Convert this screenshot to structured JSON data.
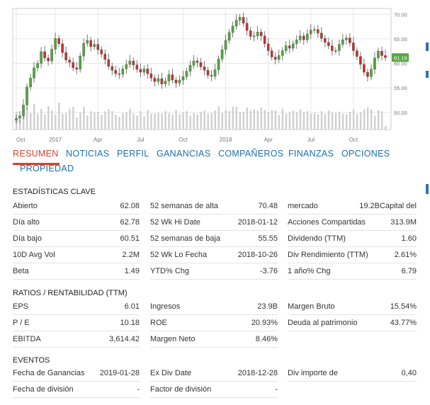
{
  "chart_data": {
    "type": "candlestick",
    "x_ticks": [
      "Oct",
      "2017",
      "Apr",
      "Jul",
      "Oct",
      "2018",
      "Apr",
      "Jul",
      "Oct"
    ],
    "y_ticks": [
      "70.00",
      "65.00",
      "60.00",
      "55.00",
      "50.00"
    ],
    "ylim": [
      46.5,
      71.2
    ],
    "last_price_label": "61.19",
    "grid": true,
    "price_series": [
      48.8,
      49.3,
      51.5,
      55.2,
      57.0,
      59.1,
      60.0,
      62.4,
      61.1,
      60.5,
      62.9,
      65.1,
      64.0,
      62.2,
      60.7,
      60.2,
      59.1,
      58.8,
      61.5,
      64.1,
      64.7,
      63.4,
      63.9,
      62.8,
      61.9,
      60.8,
      59.4,
      58.6,
      57.9,
      57.8,
      58.9,
      59.8,
      60.5,
      59.7,
      58.8,
      58.2,
      58.9,
      57.9,
      57.0,
      56.3,
      56.9,
      55.8,
      56.4,
      57.7,
      56.6,
      56.0,
      56.6,
      57.3,
      58.4,
      59.6,
      60.5,
      60.2,
      59.3,
      58.6,
      57.6,
      57.4,
      58.7,
      60.9,
      62.8,
      64.7,
      66.3,
      67.6,
      68.8,
      69.4,
      68.2,
      66.7,
      65.5,
      65.6,
      66.4,
      65.6,
      64.0,
      62.6,
      61.3,
      60.8,
      61.6,
      62.6,
      63.6,
      63.1,
      64.0,
      64.8,
      65.6,
      64.8,
      66.0,
      66.8,
      66.9,
      66.2,
      65.1,
      64.3,
      63.6,
      62.6,
      62.6,
      63.9,
      64.8,
      65.2,
      64.2,
      62.6,
      61.4,
      59.8,
      58.2,
      57.3,
      58.8,
      61.1,
      62.5,
      61.6,
      61.2
    ],
    "volume_series": [
      2.9,
      1.6,
      3.2,
      3.6,
      2.7,
      4.2,
      2.6,
      3.4,
      2.5,
      3.8,
      3.1,
      2.4,
      4.4,
      2.6,
      2.7,
      3.4,
      3.7,
      2.0,
      2.8,
      3.7,
      2.3,
      3.0,
      2.8,
      2.9,
      2.4,
      3.0,
      3.3,
      3.0,
      2.4,
      2.1,
      2.7,
      2.9,
      3.4,
      2.6,
      2.3,
      3.0,
      2.2,
      3.2,
      2.6,
      2.6,
      2.7,
      2.6,
      3.0,
      2.7,
      2.5,
      3.2,
      2.5,
      2.8,
      3.0,
      2.3,
      2.7,
      2.5,
      2.9,
      3.1,
      2.6,
      2.7,
      3.1,
      3.8,
      2.7,
      3.2,
      3.0,
      3.7,
      3.7,
      2.8,
      2.9,
      3.6,
      3.1,
      3.3,
      3.1,
      3.6,
      3.2,
      2.9,
      3.2,
      3.1,
      2.4,
      3.4,
      2.6,
      2.8,
      3.1,
      2.8,
      3.3,
      2.9,
      3.0,
      2.6,
      2.7,
      2.5,
      3.0,
      2.6,
      3.1,
      2.8,
      2.7,
      2.9,
      2.6,
      2.5,
      2.9,
      3.3,
      2.6,
      2.8,
      3.3,
      3.6,
      3.3,
      2.3,
      3.2,
      3.0,
      0.6
    ]
  },
  "tabs": [
    {
      "label": "RESUMEN",
      "active": true
    },
    {
      "label": "NOTICIAS"
    },
    {
      "label": "PERFIL"
    },
    {
      "label": "GANANCIAS"
    },
    {
      "label": "COMPAÑEROS"
    },
    {
      "label": "FINANZAS"
    },
    {
      "label": "OPCIONES"
    },
    {
      "label": "PROPIEDAD"
    }
  ],
  "sections": {
    "key_stats": {
      "title": "ESTADÍSTICAS CLAVE",
      "col1": [
        {
          "label": "Abierto",
          "value": "62.08"
        },
        {
          "label": "Día alto",
          "value": "62.78"
        },
        {
          "label": "Día bajo",
          "value": "60.51"
        },
        {
          "label": "10D Avg Vol",
          "value": "2.2M"
        },
        {
          "label": "Beta",
          "value": "1.49"
        }
      ],
      "col2": [
        {
          "label": "52 semanas de alta",
          "value": "70.48"
        },
        {
          "label": "52 Wk Hi Date",
          "value": "2018-01-12"
        },
        {
          "label": "52 semanas de baja",
          "value": "55.55"
        },
        {
          "label": "52 Wk Lo Fecha",
          "value": "2018-10-26"
        },
        {
          "label": "YTD% Chg",
          "value": "-3.76"
        }
      ],
      "col3": [
        {
          "label": "mercado",
          "value": "19.2BCapital del"
        },
        {
          "label": "Acciones Compartidas",
          "value": "313.9M"
        },
        {
          "label": "Dividendo (TTM)",
          "value": "1.60"
        },
        {
          "label": "Div Rendimiento (TTM)",
          "value": "2.61%"
        },
        {
          "label": "1 año% Chg",
          "value": "6.79"
        }
      ]
    },
    "ratios": {
      "title": "RATIOS / RENTABILIDAD (TTM)",
      "col1": [
        {
          "label": "EPS",
          "value": "6.01"
        },
        {
          "label": "P / E",
          "value": "10.18"
        },
        {
          "label": "EBITDA",
          "value": "3,614.42"
        }
      ],
      "col2": [
        {
          "label": "Ingresos",
          "value": "23.9B"
        },
        {
          "label": "ROE",
          "value": "20.93%"
        },
        {
          "label": "Margen Neto",
          "value": "8.46%"
        }
      ],
      "col3": [
        {
          "label": "Margen Bruto",
          "value": "15.54%"
        },
        {
          "label": "Deuda al patrimonio",
          "value": "43.77%"
        }
      ]
    },
    "events": {
      "title": "EVENTOS",
      "col1": [
        {
          "label": "Fecha de Ganancias",
          "value": "2019-01-28"
        },
        {
          "label": "Fecha de división",
          "value": "-"
        }
      ],
      "col2": [
        {
          "label": "Ex Div Date",
          "value": "2018-12-28"
        },
        {
          "label": "Factor de división",
          "value": "-"
        }
      ],
      "col3": [
        {
          "label": "Div importe de",
          "value": "0,40"
        }
      ]
    }
  },
  "colors": {
    "up": "#4fa83d",
    "down": "#c9302c",
    "volume": "#cfcfcf",
    "grid": "#e6e6e6",
    "price_badge": "#5aa546",
    "tab_link": "#1a6fb0",
    "tab_active": "#d9412b"
  }
}
